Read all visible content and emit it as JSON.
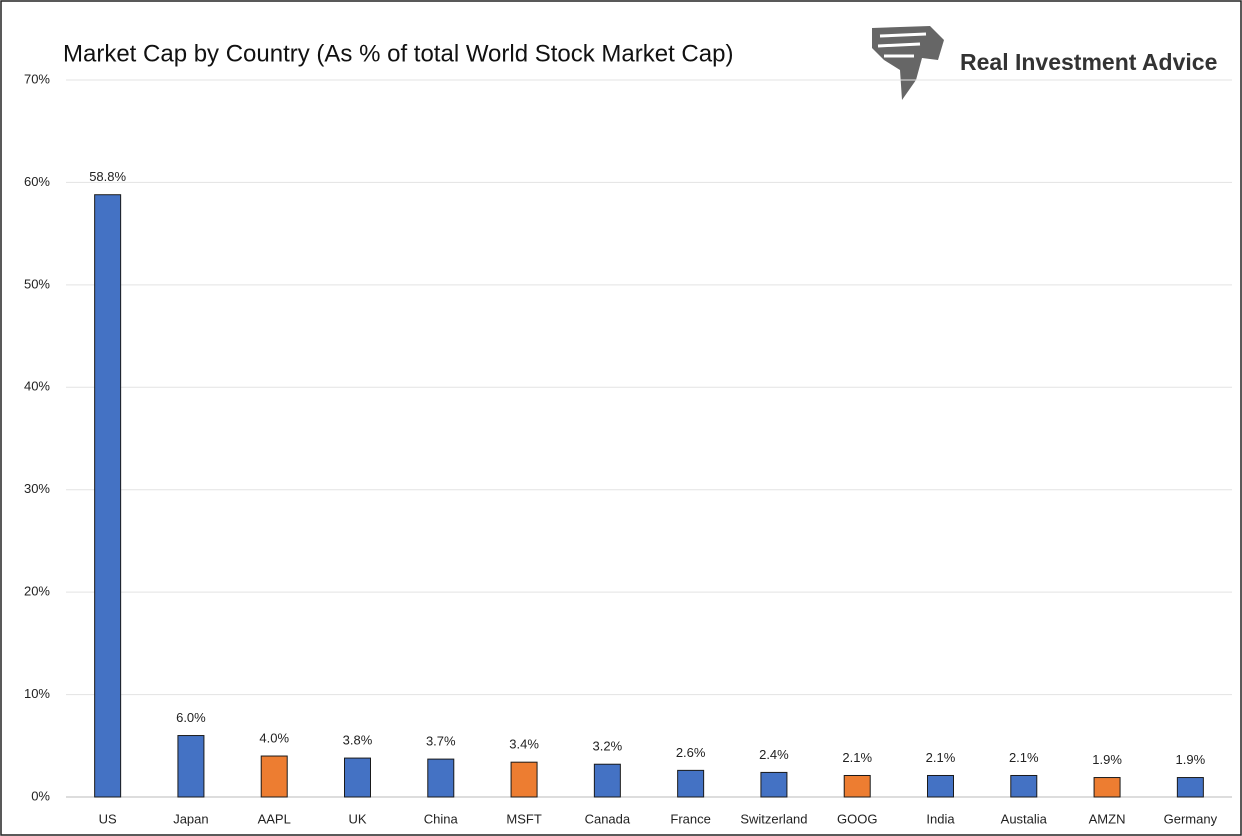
{
  "brand": "Real Investment Advice",
  "chart_data": {
    "type": "bar",
    "title": "Market Cap by Country (As % of total World Stock Market Cap)",
    "categories": [
      "US",
      "Japan",
      "AAPL",
      "UK",
      "China",
      "MSFT",
      "Canada",
      "France",
      "Switzerland",
      "GOOG",
      "India",
      "Austalia",
      "AMZN",
      "Germany"
    ],
    "values": [
      58.8,
      6.0,
      4.0,
      3.8,
      3.7,
      3.4,
      3.2,
      2.6,
      2.4,
      2.1,
      2.1,
      2.1,
      1.9,
      1.9
    ],
    "value_labels": [
      "58.8%",
      "6.0%",
      "4.0%",
      "3.8%",
      "3.7%",
      "3.4%",
      "3.2%",
      "2.6%",
      "2.4%",
      "2.1%",
      "2.1%",
      "2.1%",
      "1.9%",
      "1.9%"
    ],
    "colors": [
      "#4472c4",
      "#4472c4",
      "#ed7d31",
      "#4472c4",
      "#4472c4",
      "#ed7d31",
      "#4472c4",
      "#4472c4",
      "#4472c4",
      "#ed7d31",
      "#4472c4",
      "#4472c4",
      "#ed7d31",
      "#4472c4"
    ],
    "ylim": [
      0,
      70
    ],
    "yticks": [
      {
        "value": 0,
        "label": "0%"
      },
      {
        "value": 10,
        "label": "10%"
      },
      {
        "value": 20,
        "label": "20%"
      },
      {
        "value": 30,
        "label": "30%"
      },
      {
        "value": 40,
        "label": "40%"
      },
      {
        "value": 50,
        "label": "50%"
      },
      {
        "value": 60,
        "label": "60%"
      },
      {
        "value": 70,
        "label": "70%"
      }
    ],
    "grid": true
  }
}
